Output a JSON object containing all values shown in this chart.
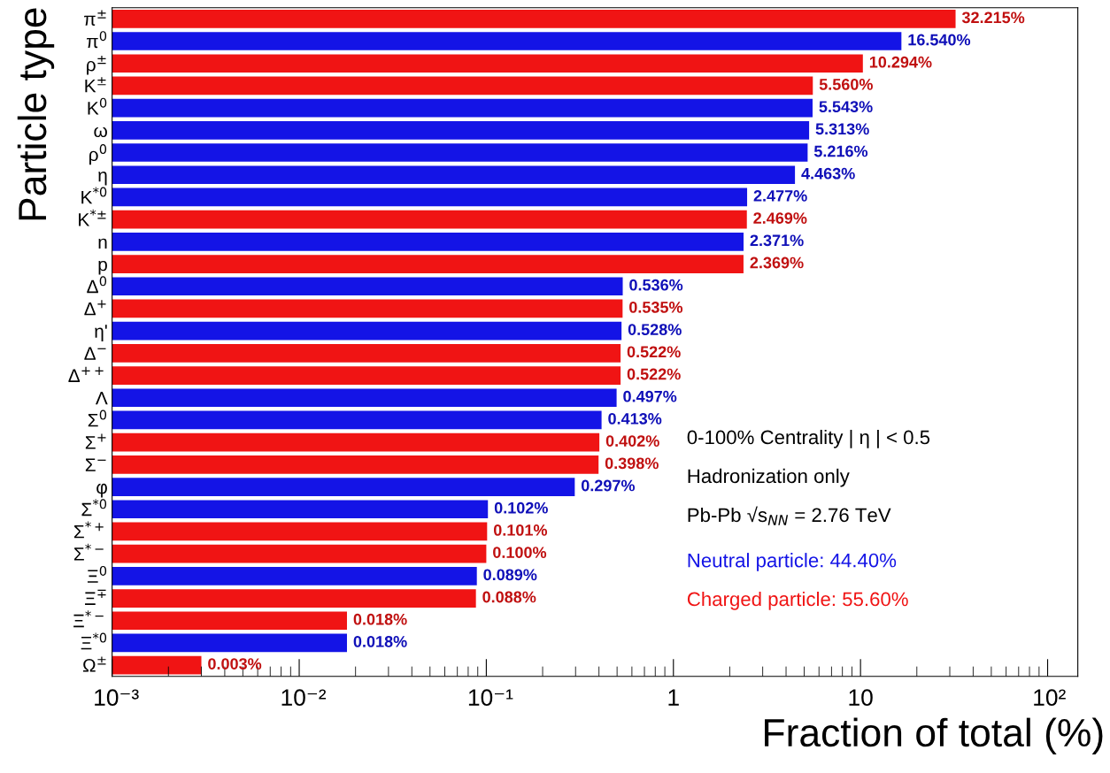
{
  "chart_data": {
    "type": "bar",
    "orientation": "horizontal",
    "ylabel": "Particle type",
    "xlabel": "Fraction of total (%)",
    "categories": [
      "π$^{±}$",
      "π$^{0}$",
      "ρ$^{±}$",
      "K$^{±}$",
      "K$^{0}$",
      "ω",
      "ρ$^{0}$",
      "η",
      "K$^{*0}$",
      "K$^{*±}$",
      "n",
      "p",
      "Δ$^{0}$",
      "Δ$^{+}$",
      "η'",
      "Δ$^{−}$",
      "Δ$^{++}$",
      "Λ",
      "Σ$^{0}$",
      "Σ$^{+}$",
      "Σ$^{−}$",
      "φ",
      "Σ$^{*0}$",
      "Σ$^{*+}$",
      "Σ$^{*−}$",
      "Ξ$^{0}$",
      "Ξ$^{∓}$",
      "Ξ$^{*−}$",
      "Ξ$^{*0}$",
      "Ω$^{±}$"
    ],
    "series": [
      {
        "name": "Neutral particle: 44.40%",
        "color": "#1414e6",
        "values": [
          null,
          16.54,
          null,
          null,
          5.543,
          5.313,
          5.216,
          4.463,
          2.477,
          null,
          2.371,
          null,
          0.536,
          null,
          0.528,
          null,
          null,
          0.497,
          0.413,
          null,
          null,
          0.297,
          0.102,
          null,
          null,
          0.089,
          null,
          null,
          0.018,
          null
        ],
        "value_labels": [
          null,
          "16.540%",
          null,
          null,
          "5.543%",
          "5.313%",
          "5.216%",
          "4.463%",
          "2.477%",
          null,
          "2.371%",
          null,
          "0.536%",
          null,
          "0.528%",
          null,
          null,
          "0.497%",
          "0.413%",
          null,
          null,
          "0.297%",
          "0.102%",
          null,
          null,
          "0.089%",
          null,
          null,
          "0.018%",
          null
        ]
      },
      {
        "name": "Charged particle: 55.60%",
        "color": "#f01414",
        "values": [
          32.215,
          null,
          10.294,
          5.56,
          null,
          null,
          null,
          null,
          null,
          2.469,
          null,
          2.369,
          null,
          0.535,
          null,
          0.522,
          0.522,
          null,
          null,
          0.402,
          0.398,
          null,
          null,
          0.101,
          0.1,
          null,
          0.088,
          0.018,
          null,
          0.003
        ],
        "value_labels": [
          "32.215%",
          null,
          "10.294%",
          "5.560%",
          null,
          null,
          null,
          null,
          null,
          "2.469%",
          null,
          "2.369%",
          null,
          "0.535%",
          null,
          "0.522%",
          "0.522%",
          null,
          null,
          "0.402%",
          "0.398%",
          null,
          null,
          "0.101%",
          "0.100%",
          null,
          "0.088%",
          "0.018%",
          null,
          "0.003%"
        ]
      }
    ],
    "log": "x",
    "xlim": [
      0.001,
      145
    ],
    "xticks": [
      {
        "value": 0.001,
        "label": "10⁻³"
      },
      {
        "value": 0.01,
        "label": "10⁻²"
      },
      {
        "value": 0.1,
        "label": "10⁻¹"
      },
      1,
      10,
      {
        "value": 100,
        "label": "10²"
      }
    ],
    "annotations": [
      "0-100% Centrality | η | < 0.5",
      "Hadronization only",
      "Pb-Pb √s$_{NN}$ = 2.76 TeV"
    ],
    "grid": false
  }
}
